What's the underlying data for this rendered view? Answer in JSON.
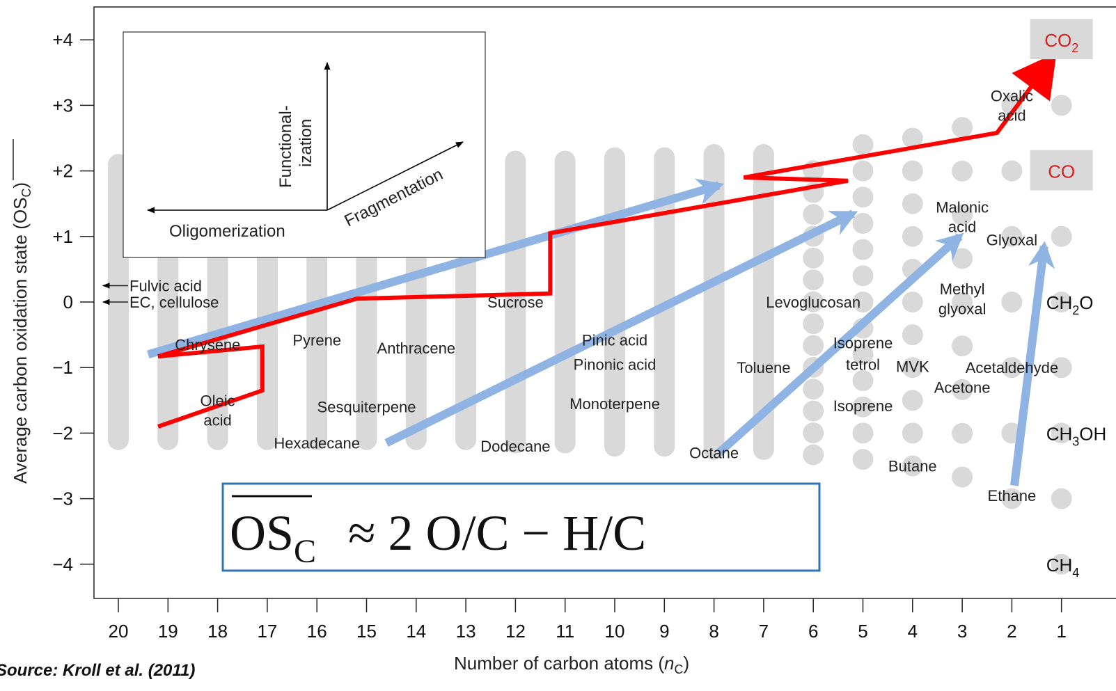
{
  "chart_data": {
    "type": "scatter",
    "title": "",
    "xlabel_main": "Number of carbon atoms (",
    "xlabel_var": "n",
    "xlabel_sub": "C",
    "xlabel_close": ")",
    "ylabel_main": "Average carbon oxidation state (",
    "ylabel_var": "OS",
    "ylabel_sub": "C",
    "ylabel_close": ")",
    "x_ticks": [
      "20",
      "19",
      "18",
      "17",
      "16",
      "15",
      "14",
      "13",
      "12",
      "11",
      "10",
      "9",
      "8",
      "7",
      "6",
      "5",
      "4",
      "3",
      "2",
      "1"
    ],
    "y_ticks": [
      "+4",
      "+3",
      "+2",
      "+1",
      "0",
      "−1",
      "−2",
      "−3",
      "−4"
    ],
    "xlim": [
      20.5,
      0.5
    ],
    "ylim": [
      -4.5,
      4.5
    ],
    "x_reversed": true,
    "possible_states": [
      {
        "n": 20,
        "ymin": -2.1,
        "ymax": 2.1
      },
      {
        "n": 19,
        "ymin": -2.1,
        "ymax": 2.1
      },
      {
        "n": 18,
        "ymin": -2.1,
        "ymax": 2.1
      },
      {
        "n": 17,
        "ymin": -2.1,
        "ymax": 2.1
      },
      {
        "n": 16,
        "ymin": -2.1,
        "ymax": 2.1
      },
      {
        "n": 15,
        "ymin": -2.1,
        "ymax": 2.1
      },
      {
        "n": 14,
        "ymin": -2.1,
        "ymax": 2.1
      },
      {
        "n": 13,
        "ymin": -2.1,
        "ymax": 2.1
      },
      {
        "n": 12,
        "ymin": -2.15,
        "ymax": 2.15
      },
      {
        "n": 11,
        "ymin": -2.15,
        "ymax": 2.15
      },
      {
        "n": 10,
        "ymin": -2.2,
        "ymax": 2.2
      },
      {
        "n": 9,
        "ymin": -2.2,
        "ymax": 2.2
      },
      {
        "n": 8,
        "ymin": -2.25,
        "ymax": 2.25
      },
      {
        "n": 7,
        "ymin": -2.25,
        "ymax": 2.25
      },
      {
        "n": 6,
        "ymin": -2.33,
        "ymax": 2.33
      },
      {
        "n": 5,
        "ymin": -2.4,
        "ymax": 2.4
      },
      {
        "n": 4,
        "ymin": -2.5,
        "ymax": 2.5
      },
      {
        "n": 3,
        "ymin": -2.67,
        "ymax": 2.67
      },
      {
        "n": 2,
        "ymin": -3,
        "ymax": 3
      },
      {
        "n": 1,
        "ymin": -4,
        "ymax": 4
      }
    ],
    "compounds": [
      {
        "name": "Fulvic acid",
        "x": 20,
        "y": 0.25,
        "arrow": true
      },
      {
        "name": "EC, cellulose",
        "x": 20,
        "y": 0,
        "arrow": true
      },
      {
        "name": "Chrysene",
        "x": 18.2,
        "y": -0.65
      },
      {
        "name": "Pyrene",
        "x": 16,
        "y": -0.58
      },
      {
        "name": "Anthracene",
        "x": 14,
        "y": -0.7
      },
      {
        "name": "Oleic",
        "x": 18,
        "y": -1.5
      },
      {
        "name": "acid",
        "x": 18,
        "y": -1.8
      },
      {
        "name": "Sesquiterpene",
        "x": 15,
        "y": -1.6
      },
      {
        "name": "Hexadecane",
        "x": 16,
        "y": -2.15
      },
      {
        "name": "Sucrose",
        "x": 12,
        "y": 0
      },
      {
        "name": "Dodecane",
        "x": 12,
        "y": -2.2
      },
      {
        "name": "Pinic acid",
        "x": 10,
        "y": -0.58
      },
      {
        "name": "Pinonic acid",
        "x": 10,
        "y": -0.95
      },
      {
        "name": "Monoterpene",
        "x": 10,
        "y": -1.55
      },
      {
        "name": "Toluene",
        "x": 7,
        "y": -1
      },
      {
        "name": "Octane",
        "x": 8,
        "y": -2.3
      },
      {
        "name": "Levoglucosan",
        "x": 6,
        "y": 0
      },
      {
        "name": "Isoprene",
        "x": 5,
        "y": -0.62
      },
      {
        "name": "tetrol",
        "x": 5,
        "y": -0.95
      },
      {
        "name": "Isoprene",
        "x": 5,
        "y": -1.58
      },
      {
        "name": "MVK",
        "x": 4,
        "y": -0.98
      },
      {
        "name": "Butane",
        "x": 4,
        "y": -2.5
      },
      {
        "name": "Malonic",
        "x": 3,
        "y": 1.45
      },
      {
        "name": "acid",
        "x": 3,
        "y": 1.15
      },
      {
        "name": "Methyl",
        "x": 3,
        "y": 0.2
      },
      {
        "name": "glyoxal",
        "x": 3,
        "y": -0.1
      },
      {
        "name": "Acetaldehyde",
        "x": 2,
        "y": -1
      },
      {
        "name": "Acetone",
        "x": 3,
        "y": -1.3
      },
      {
        "name": "Oxalic",
        "x": 2,
        "y": 3.15
      },
      {
        "name": "acid",
        "x": 2,
        "y": 2.85
      },
      {
        "name": "Glyoxal",
        "x": 2,
        "y": 0.95
      },
      {
        "name": "Ethane",
        "x": 2,
        "y": -2.95
      }
    ],
    "boxed_labels": [
      {
        "name": "CO",
        "sub": "2",
        "x": 1,
        "y": 4
      },
      {
        "name": "CO",
        "sub": "",
        "x": 1,
        "y": 2
      }
    ],
    "c1_labels": [
      {
        "name": "CH",
        "sub": "2",
        "tail": "O",
        "x": 1,
        "y": 0
      },
      {
        "name": "CH",
        "sub": "3",
        "tail": "OH",
        "x": 1,
        "y": -2
      },
      {
        "name": "CH",
        "sub": "4",
        "tail": "",
        "x": 1,
        "y": -4
      }
    ],
    "blue_arrows": [
      {
        "from": [
          19.4,
          -0.8
        ],
        "to": [
          7.9,
          1.78
        ]
      },
      {
        "from": [
          14.6,
          -2.15
        ],
        "to": [
          5.2,
          1.35
        ]
      },
      {
        "from": [
          7.9,
          -2.3
        ],
        "to": [
          3.05,
          1.0
        ]
      },
      {
        "from": [
          1.95,
          -2.8
        ],
        "to": [
          1.35,
          0.85
        ]
      }
    ],
    "red_path": [
      [
        19.2,
        -1.9
      ],
      [
        17.1,
        -1.35
      ],
      [
        17.1,
        -0.68
      ],
      [
        19.2,
        -0.83
      ],
      [
        15.2,
        0.05
      ],
      [
        11.3,
        0.13
      ],
      [
        11.3,
        1.05
      ],
      [
        5.3,
        1.85
      ],
      [
        7.4,
        1.9
      ],
      [
        2.3,
        2.58
      ],
      [
        1.35,
        3.55
      ]
    ],
    "red_color": "#ff0000",
    "blue_color": "#8fb3e3",
    "grey_color": "#d9d9d9",
    "inset": {
      "labels": [
        "Functional-",
        "ization",
        "Fragmentation",
        "Oligomerization"
      ]
    },
    "formula": {
      "lhs_main": "OS",
      "lhs_sub": "C",
      "rhs": "≈ 2 O/C − H/C"
    },
    "source": "Source: Kroll et al. (2011)"
  }
}
